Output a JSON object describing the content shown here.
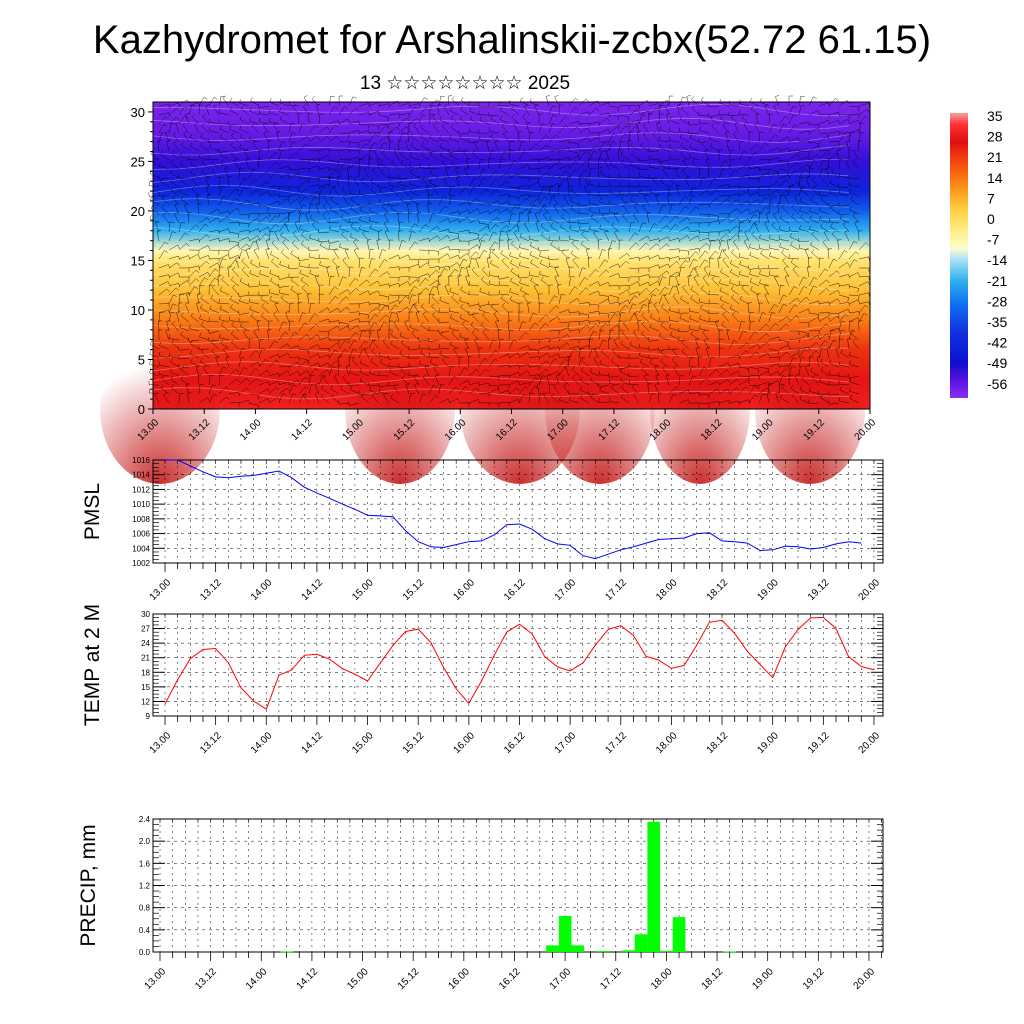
{
  "title": "Kazhydromet for Arshalinskii-zcbx(52.72 61.15)",
  "subtitle": "13 ☆☆☆☆☆☆☆☆ 2025",
  "chart_data": [
    {
      "type": "heatmap",
      "name": "vertical cross-section temperature with wind barbs",
      "x_tick_labels": [
        "13.00",
        "13.12",
        "14.00",
        "14.12",
        "15.00",
        "15.12",
        "16.00",
        "16.12",
        "17.00",
        "17.12",
        "18.00",
        "18.12",
        "19.00",
        "19.12",
        "20.00"
      ],
      "y_ticks": [
        0,
        5,
        10,
        15,
        20,
        25,
        30
      ],
      "ylim": [
        0,
        31
      ],
      "colorbar": {
        "labels": [
          "35",
          "28",
          "21",
          "14",
          "7",
          "0",
          "-7",
          "-14",
          "-21",
          "-28",
          "-35",
          "-42",
          "-49",
          "-56"
        ],
        "colors": [
          "#f6a0a0",
          "#e02020",
          "#f03a10",
          "#f86a10",
          "#fca020",
          "#fed040",
          "#fff8a0",
          "#a8e0f8",
          "#30b0f0",
          "#1070f0",
          "#1030e0",
          "#0a10d0",
          "#5a10e0",
          "#8a30f0"
        ]
      },
      "temperature_profile": [
        [
          0,
          28
        ],
        [
          3,
          26
        ],
        [
          6,
          21
        ],
        [
          9,
          12
        ],
        [
          12,
          4
        ],
        [
          15,
          -3
        ],
        [
          16,
          -9
        ],
        [
          18,
          -22
        ],
        [
          20,
          -33
        ],
        [
          22,
          -44
        ],
        [
          25,
          -53
        ],
        [
          28,
          -58
        ],
        [
          31,
          -60
        ]
      ]
    },
    {
      "type": "line",
      "ylabel": "PMSL",
      "color": "#0000ff",
      "x_tick_labels": [
        "13.00",
        "13.12",
        "14.00",
        "14.12",
        "15.00",
        "15.12",
        "16.00",
        "16.12",
        "17.00",
        "17.12",
        "18.00",
        "18.12",
        "19.00",
        "19.12",
        "20.00"
      ],
      "y_ticks": [
        1002,
        1004,
        1006,
        1008,
        1010,
        1012,
        1014,
        1016
      ],
      "ylim": [
        1002,
        1016
      ],
      "x": [
        0,
        3,
        6,
        9,
        12,
        15,
        18,
        21,
        24,
        27,
        30,
        33,
        36,
        39,
        42,
        45,
        48,
        51,
        54,
        57,
        60,
        63,
        66,
        69,
        72,
        75,
        78,
        81,
        84,
        87,
        90,
        93,
        96,
        99,
        102,
        105,
        108,
        111,
        114,
        117,
        120,
        123,
        126,
        129,
        132,
        135,
        138,
        141,
        144,
        147,
        150,
        153,
        156,
        159,
        162,
        165
      ],
      "values": [
        1016,
        1016,
        1015.2,
        1014.4,
        1013.7,
        1013.6,
        1013.8,
        1013.9,
        1014.2,
        1014.5,
        1013.6,
        1012.3,
        1011.5,
        1010.8,
        1010,
        1009.3,
        1008.5,
        1008.4,
        1008.3,
        1006.4,
        1004.9,
        1004.2,
        1004.1,
        1004.5,
        1004.9,
        1005,
        1005.8,
        1007.2,
        1007.3,
        1006.6,
        1005.3,
        1004.6,
        1004.4,
        1003,
        1002.6,
        1003.2,
        1003.8,
        1004.2,
        1004.7,
        1005.2,
        1005.3,
        1005.4,
        1006,
        1006.1,
        1005,
        1004.9,
        1004.7,
        1003.7,
        1003.8,
        1004.3,
        1004.2,
        1003.9,
        1004.1,
        1004.6,
        1004.9,
        1004.7
      ]
    },
    {
      "type": "line",
      "ylabel": "TEMP at 2 M",
      "color": "#ff0000",
      "x_tick_labels": [
        "13.00",
        "13.12",
        "14.00",
        "14.12",
        "15.00",
        "15.12",
        "16.00",
        "16.12",
        "17.00",
        "17.12",
        "18.00",
        "18.12",
        "19.00",
        "19.12",
        "20.00"
      ],
      "y_ticks": [
        9,
        12,
        15,
        18,
        21,
        24,
        27,
        30
      ],
      "ylim": [
        9,
        30
      ],
      "x": [
        0,
        3,
        6,
        9,
        12,
        15,
        18,
        21,
        24,
        27,
        30,
        33,
        36,
        39,
        42,
        45,
        48,
        51,
        54,
        57,
        60,
        63,
        66,
        69,
        72,
        75,
        78,
        81,
        84,
        87,
        90,
        93,
        96,
        99,
        102,
        105,
        108,
        111,
        114,
        117,
        120,
        123,
        126,
        129,
        132,
        135,
        138,
        141,
        144,
        147,
        150,
        153,
        156,
        159,
        162,
        165,
        168
      ],
      "values": [
        11.5,
        16.5,
        20.8,
        22.7,
        22.9,
        20,
        14.8,
        12.1,
        10.4,
        17.4,
        18.5,
        21.5,
        21.7,
        20.7,
        18.8,
        17.6,
        16.2,
        19.9,
        23.5,
        26.4,
        26.9,
        24.1,
        19,
        14.6,
        11.6,
        16.2,
        21.5,
        26.3,
        27.9,
        25.9,
        21.2,
        19.1,
        18.3,
        19.9,
        23.6,
        26.8,
        27.6,
        25.6,
        21.3,
        20.5,
        18.8,
        19.4,
        23.6,
        28.3,
        28.7,
        26,
        22.3,
        19.6,
        16.9,
        23.2,
        26.8,
        29.2,
        29.3,
        27,
        21.2,
        19.2,
        18.5
      ]
    },
    {
      "type": "bar",
      "ylabel": "PRECIP, mm",
      "color": "#00ff00",
      "x_tick_labels": [
        "13.00",
        "13.12",
        "14.00",
        "14.12",
        "15.00",
        "15.12",
        "16.00",
        "16.12",
        "17.00",
        "17.12",
        "18.00",
        "18.12",
        "19.00",
        "19.12",
        "20.00"
      ],
      "y_tick_labels": [
        "0.0",
        "0.4",
        "0.8",
        "1.2",
        "1.6",
        "2.0",
        "2.4"
      ],
      "ylim": [
        0,
        2.4
      ],
      "x": [
        30,
        93,
        96,
        99,
        105,
        111,
        114,
        117,
        120,
        123,
        135
      ],
      "values": [
        0.01,
        0.12,
        0.65,
        0.12,
        0.02,
        0.03,
        0.32,
        2.35,
        0.02,
        0.63,
        0.01
      ]
    }
  ]
}
